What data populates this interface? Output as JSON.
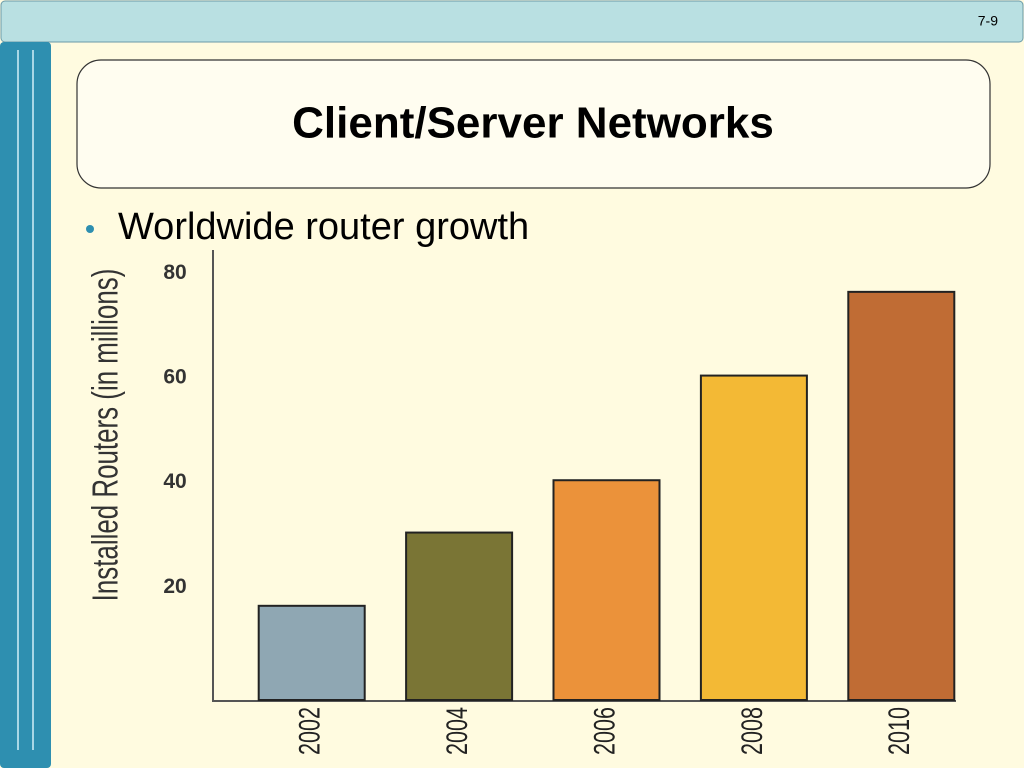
{
  "header": {
    "page_number": "7-9"
  },
  "slide": {
    "title": "Client/Server Networks",
    "bullets": [
      "Worldwide router growth"
    ]
  },
  "chart_data": {
    "type": "bar",
    "y_label": "Installed Routers (in millions)",
    "categories": [
      "2002",
      "2004",
      "2006",
      "2008",
      "2010"
    ],
    "values": [
      18,
      32,
      42,
      62,
      78
    ],
    "colors": [
      "#8fa7b3",
      "#7a7535",
      "#eb923a",
      "#f3b935",
      "#c06c34"
    ],
    "ylim": [
      0,
      86
    ],
    "yticks": [
      20,
      40,
      60,
      80
    ],
    "grid": false
  }
}
